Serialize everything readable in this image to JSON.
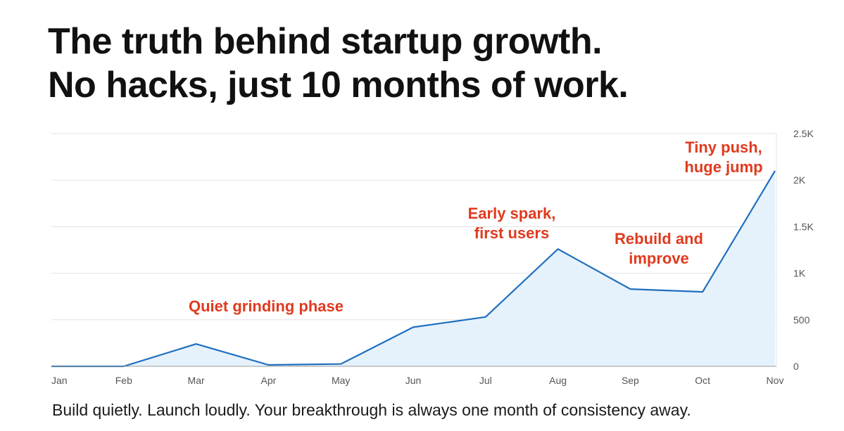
{
  "headline": {
    "line1": "The truth behind startup growth.",
    "line2": "No hacks, just 10 months of work."
  },
  "caption": "Build quietly. Launch loudly. Your breakthrough is always one month of consistency away.",
  "colors": {
    "line": "#1f6fbf",
    "area": "#e6f2fb",
    "grid": "#e3e3e3",
    "annotation": "#e03a1e",
    "text": "#111111"
  },
  "chart_data": {
    "type": "area",
    "title": "",
    "xlabel": "",
    "ylabel": "",
    "categories": [
      "Jan",
      "Feb",
      "Mar",
      "Apr",
      "May",
      "Jun",
      "Jul",
      "Aug",
      "Sep",
      "Oct",
      "Nov"
    ],
    "values": [
      0,
      0,
      240,
      15,
      25,
      420,
      530,
      1260,
      830,
      800,
      2100
    ],
    "ylim": [
      0,
      2500
    ],
    "y_ticks": [
      0,
      500,
      1000,
      1500,
      2000,
      2500
    ],
    "y_tick_labels": [
      "0",
      "500",
      "1K",
      "1.5K",
      "2K",
      "2.5K"
    ],
    "y_axis_position": "right",
    "grid": true,
    "annotations": [
      {
        "lines": [
          "Quiet grinding phase"
        ],
        "near": "Apr"
      },
      {
        "lines": [
          "Early spark,",
          "first users"
        ],
        "near": "Aug"
      },
      {
        "lines": [
          "Rebuild and",
          "improve"
        ],
        "near": "Sep"
      },
      {
        "lines": [
          "Tiny push,",
          "huge jump"
        ],
        "near": "Nov"
      }
    ]
  }
}
